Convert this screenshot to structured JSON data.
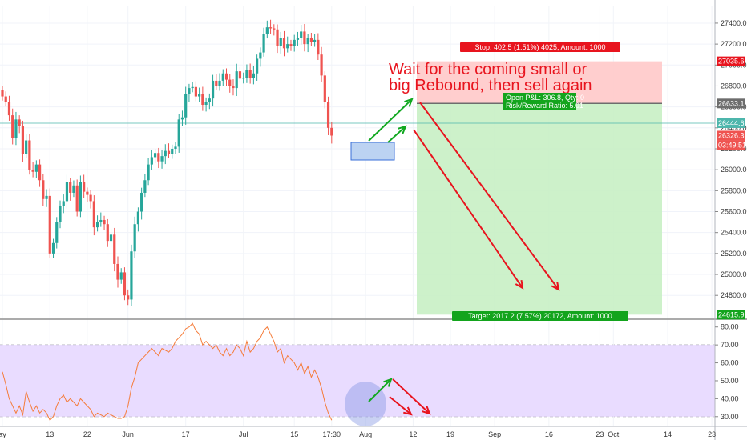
{
  "chart_data": {
    "type": "candlestick",
    "price_axis": {
      "ylim": [
        24580,
        27560
      ],
      "ticks": [
        24800,
        25000,
        25200,
        25400,
        25600,
        25800,
        26000,
        26200,
        26400,
        26600,
        26800,
        27000,
        27200,
        27400
      ],
      "tick_labels": [
        "24800.0",
        "25000.0",
        "25200.0",
        "25400.0",
        "25600.0",
        "25800.0",
        "26000.0",
        "26200.0",
        "26400.0",
        "26600.0",
        "26800.0",
        "27000.0",
        "27200.0",
        "27400.0"
      ]
    },
    "rsi_axis": {
      "ylim": [
        25,
        83
      ],
      "ticks": [
        30,
        40,
        50,
        60,
        70,
        80
      ],
      "tick_labels": [
        "30.00",
        "40.00",
        "50.00",
        "60.00",
        "70.00",
        "80.00"
      ],
      "band": [
        30,
        70
      ]
    },
    "time_axis": {
      "labels": [
        {
          "text": "ay",
          "bar": 0
        },
        {
          "text": "13",
          "bar": 14
        },
        {
          "text": "22",
          "bar": 25
        },
        {
          "text": "Jun",
          "bar": 37
        },
        {
          "text": "17",
          "bar": 54
        },
        {
          "text": "Jul",
          "bar": 71
        },
        {
          "text": "15",
          "bar": 86
        },
        {
          "text": "17:30",
          "bar": 97
        },
        {
          "text": "Aug",
          "bar": 107
        },
        {
          "text": "12",
          "bar": 121
        },
        {
          "text": "19",
          "bar": 132
        },
        {
          "text": "Sep",
          "bar": 145
        },
        {
          "text": "16",
          "bar": 161
        },
        {
          "text": "23",
          "bar": 176
        },
        {
          "text": "Oct",
          "bar": 180
        },
        {
          "text": "14",
          "bar": 196
        },
        {
          "text": "23",
          "bar": 209
        }
      ]
    },
    "candles_close": [
      26700,
      26650,
      26520,
      26300,
      26480,
      26420,
      26150,
      26280,
      26000,
      25980,
      26050,
      25900,
      25720,
      25750,
      25200,
      25300,
      25500,
      25650,
      25700,
      25880,
      25780,
      25850,
      25600,
      25880,
      25790,
      25760,
      25700,
      25450,
      25500,
      25520,
      25480,
      25320,
      25380,
      25100,
      24950,
      25020,
      24800,
      24760,
      25220,
      25480,
      25600,
      25780,
      25900,
      26050,
      26120,
      26160,
      26080,
      26130,
      26180,
      26150,
      26200,
      26220,
      26480,
      26500,
      26720,
      26780,
      26790,
      26700,
      26720,
      26620,
      26650,
      26680,
      26850,
      26800,
      26850,
      26920,
      26860,
      26800,
      26780,
      26940,
      26870,
      26880,
      26950,
      26880,
      26920,
      27060,
      27120,
      27300,
      27360,
      27350,
      27340,
      27180,
      27260,
      27160,
      27200,
      27180,
      27240,
      27260,
      27320,
      27200,
      27260,
      27220,
      27240,
      27100,
      26900,
      26650,
      26400,
      26326
    ],
    "rsi": [
      55,
      48,
      40,
      36,
      32,
      36,
      31,
      44,
      38,
      33,
      36,
      32,
      34,
      32,
      28,
      30,
      36,
      40,
      42,
      38,
      40,
      38,
      36,
      40,
      38,
      36,
      34,
      30,
      32,
      31,
      30,
      32,
      31,
      30,
      29,
      29,
      30,
      36,
      46,
      52,
      60,
      62,
      64,
      66,
      68,
      66,
      64,
      68,
      67,
      66,
      68,
      72,
      74,
      76,
      79,
      80,
      82,
      78,
      76,
      70,
      72,
      70,
      68,
      70,
      66,
      64,
      68,
      64,
      66,
      70,
      68,
      64,
      72,
      66,
      68,
      72,
      74,
      78,
      80,
      76,
      72,
      66,
      68,
      60,
      64,
      62,
      60,
      56,
      60,
      54,
      58,
      52,
      56,
      52,
      46,
      38,
      32,
      28
    ],
    "price_label": "26444.6",
    "current_price": "26326.3",
    "countdown": "03:49:51",
    "stop_price": "27035.6",
    "entry_price": "26633.1",
    "target_price": "24615.9",
    "stop_label": "Stop: 402.5 (1.51%) 4025, Amount: 1000",
    "target_label": "Target: 2017.2 (7.57%) 20172, Amount: 1000",
    "open_pl_label": "Open P&L: 306.8, Qty: 0",
    "risk_reward_label": "Risk/Reward Ratio: 5.01",
    "annotation_line1": "Wait for the coming small or",
    "annotation_line2": "big Rebound, then sell again",
    "colors": {
      "up": "#26a69a",
      "down": "#ef5350",
      "rsi_line": "#f57c3a",
      "rsi_band": "#e9dcff",
      "stop_zone": "#ffc9c9",
      "target_zone": "#c8efc4",
      "arrow_red": "#e8141e",
      "arrow_green": "#11a820"
    }
  }
}
